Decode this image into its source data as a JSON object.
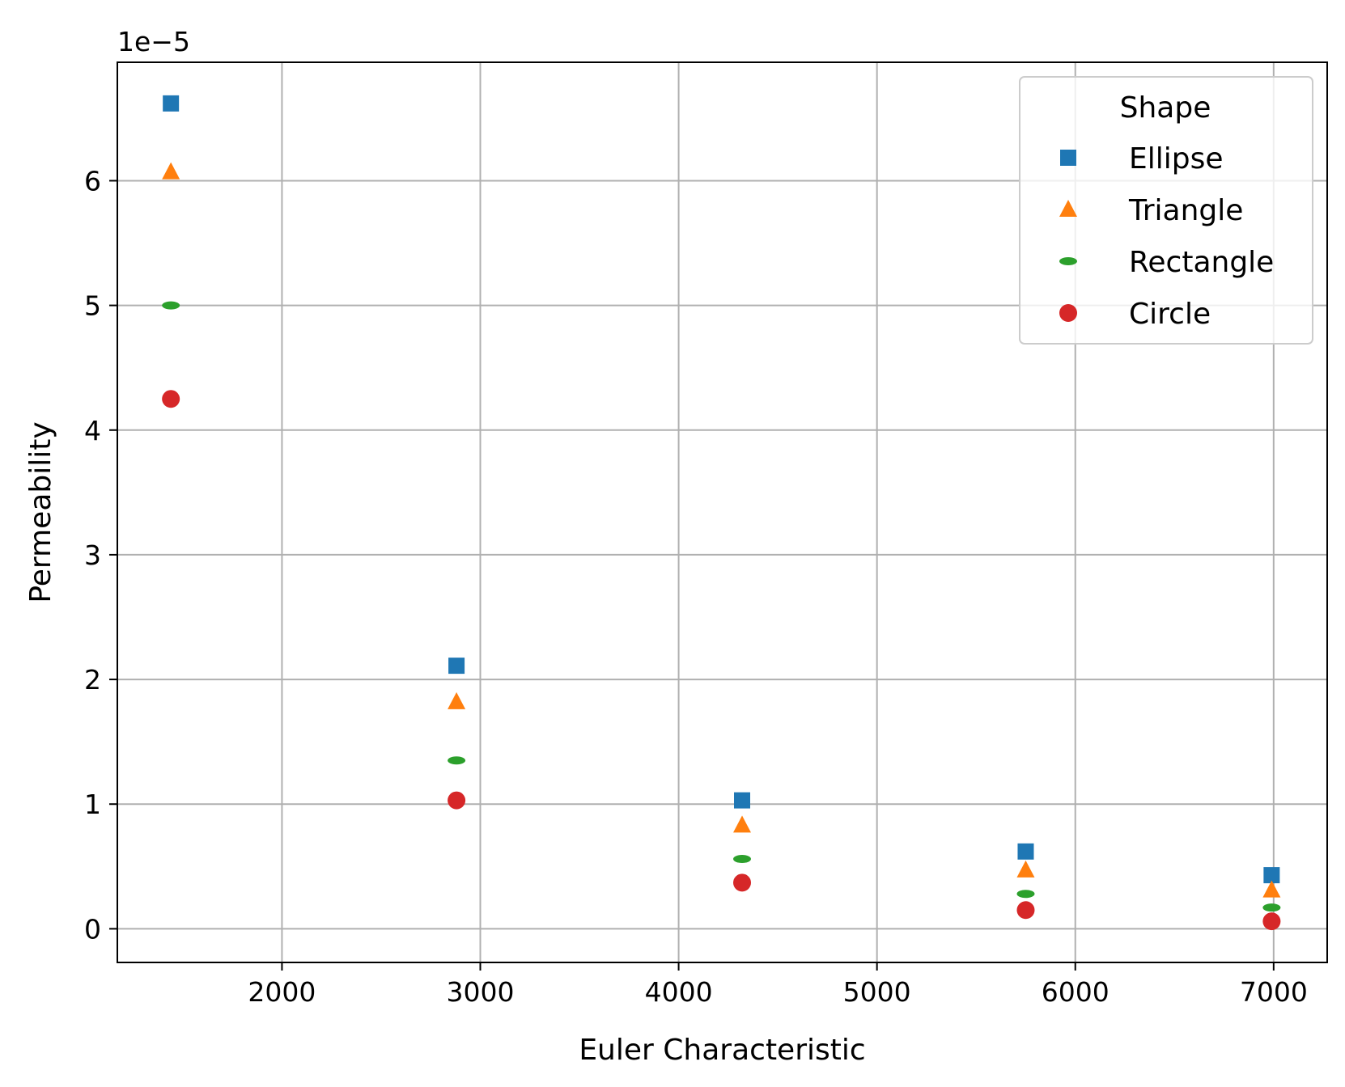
{
  "chart_data": {
    "type": "scatter",
    "xlabel": "Euler Characteristic",
    "ylabel": "Permeability",
    "y_offset_text": "1e−5",
    "y_scale_factor": 1e-05,
    "xlim": [
      1170,
      7270
    ],
    "ylim": [
      -0.27,
      6.95
    ],
    "x_ticks": [
      2000,
      3000,
      4000,
      5000,
      6000,
      7000
    ],
    "y_ticks": [
      0,
      1,
      2,
      3,
      4,
      5,
      6
    ],
    "grid": true,
    "legend": {
      "title": "Shape",
      "placement": "upper-right"
    },
    "series": [
      {
        "name": "Ellipse",
        "marker": "square",
        "color": "#1f77b4",
        "x": [
          1440,
          2880,
          4320,
          5750,
          6990
        ],
        "y": [
          6.62,
          2.11,
          1.03,
          0.62,
          0.43
        ]
      },
      {
        "name": "Triangle",
        "marker": "triangle",
        "color": "#ff7f0e",
        "x": [
          1440,
          2880,
          4320,
          5750,
          6990
        ],
        "y": [
          6.07,
          1.82,
          0.83,
          0.47,
          0.31
        ]
      },
      {
        "name": "Rectangle",
        "marker": "ellipse",
        "color": "#2ca02c",
        "x": [
          1440,
          2880,
          4320,
          5750,
          6990
        ],
        "y": [
          5.0,
          1.35,
          0.56,
          0.28,
          0.17
        ]
      },
      {
        "name": "Circle",
        "marker": "circle",
        "color": "#d62728",
        "x": [
          1440,
          2880,
          4320,
          5750,
          6990
        ],
        "y": [
          4.25,
          1.03,
          0.37,
          0.15,
          0.06
        ]
      }
    ]
  }
}
